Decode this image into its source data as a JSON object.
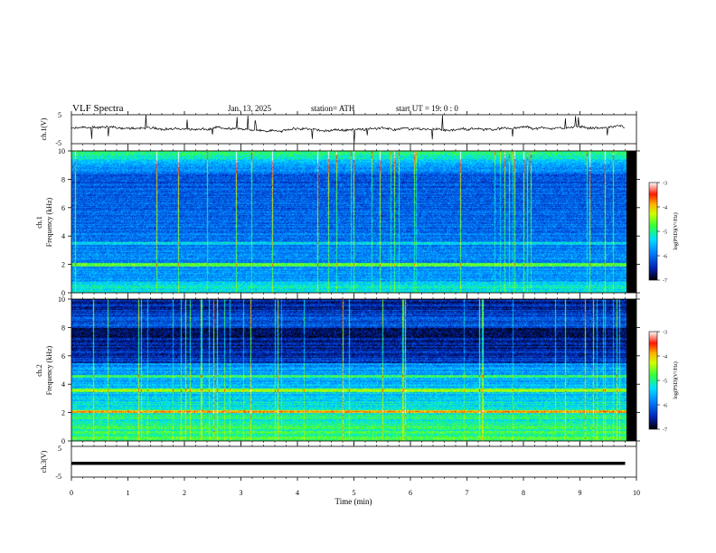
{
  "header": {
    "title": "VLF  Spectra",
    "date": "Jan. 13, 2025",
    "station": "station= ATH",
    "start": "start  UT  =    19: 0   : 0"
  },
  "chart_data": [
    {
      "type": "line",
      "panel": "ch1-waveform",
      "ylabel": "ch.1(V)",
      "yticklabels": [
        "5",
        "-5"
      ],
      "ylim": [
        -5,
        5
      ],
      "xlim": [
        0,
        10
      ],
      "data_end_min": 9.8,
      "color": "#000000"
    },
    {
      "type": "heatmap",
      "panel": "ch1-spectrogram",
      "ylabel_line1": "ch.1",
      "ylabel_line2": "Frequency  (kHz)",
      "yticklabels": [
        "0",
        "2",
        "4",
        "6",
        "8",
        "10"
      ],
      "yticks": [
        0,
        2,
        4,
        6,
        8,
        10
      ],
      "ylim": [
        0,
        10
      ],
      "xlim": [
        0,
        10
      ],
      "colorbar": {
        "label": "log(PSD)(V²/Hz)",
        "ticklabels": [
          "-3",
          "-4",
          "-5",
          "-6",
          "-7"
        ],
        "range": [
          -7,
          -3
        ]
      }
    },
    {
      "type": "heatmap",
      "panel": "ch2-spectrogram",
      "ylabel_line1": "ch.2",
      "ylabel_line2": "Frequency  (kHz)",
      "yticklabels": [
        "0",
        "2",
        "4",
        "6",
        "8",
        "10"
      ],
      "yticks": [
        0,
        2,
        4,
        6,
        8,
        10
      ],
      "ylim": [
        0,
        10
      ],
      "xlim": [
        0,
        10
      ],
      "colorbar": {
        "label": "log(PSD)(V²/Hz)",
        "ticklabels": [
          "-3",
          "-4",
          "-5",
          "-6",
          "-7"
        ],
        "range": [
          -7,
          -3
        ]
      }
    },
    {
      "type": "line",
      "panel": "ch3-waveform",
      "ylabel": "ch.3(V)",
      "yticklabels": [
        "5",
        "-5"
      ],
      "ylim": [
        -5,
        5
      ],
      "xlim": [
        0,
        10
      ],
      "value": -0.5,
      "color": "#000000"
    }
  ],
  "xaxis": {
    "label": "Time  (min)",
    "ticks": [
      0,
      1,
      2,
      3,
      4,
      5,
      6,
      7,
      8,
      9,
      10
    ],
    "ticklabels": [
      "0",
      "1",
      "2",
      "3",
      "4",
      "5",
      "6",
      "7",
      "8",
      "9",
      "10"
    ]
  },
  "colormap": [
    "#000000",
    "#000a6e",
    "#0030c8",
    "#0078ff",
    "#00c8ff",
    "#00ffa0",
    "#30ff30",
    "#c8ff00",
    "#ffd000",
    "#ff3000",
    "#ffffff"
  ]
}
